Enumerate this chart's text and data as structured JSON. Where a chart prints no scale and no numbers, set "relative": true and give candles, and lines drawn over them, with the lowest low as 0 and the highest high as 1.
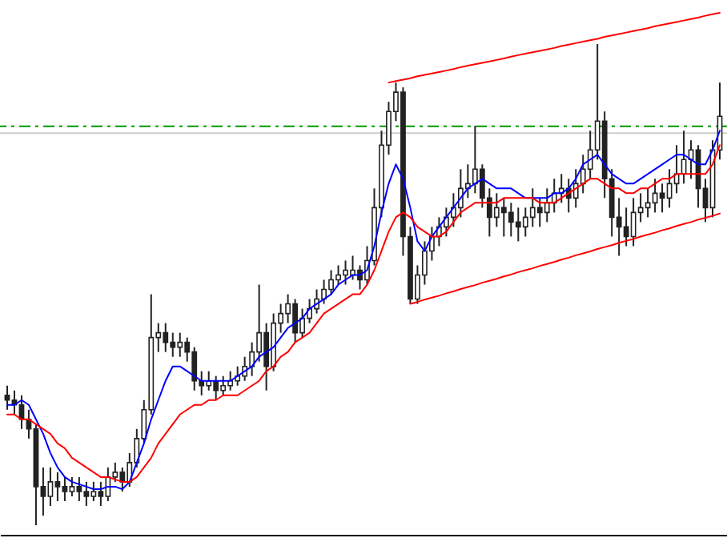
{
  "chart_data": {
    "type": "candlestick",
    "relative": true,
    "categories": [
      null,
      null,
      null,
      null,
      null,
      null,
      null,
      null,
      null,
      null,
      null,
      null,
      null,
      null,
      null,
      null,
      null,
      null,
      null,
      null,
      null,
      null,
      null,
      null,
      null,
      null,
      null,
      null,
      null,
      null,
      null,
      null,
      null,
      null,
      null,
      null,
      null,
      null,
      null,
      null,
      null,
      null,
      null,
      null,
      null,
      null,
      null,
      null,
      null,
      null,
      null,
      null,
      null,
      null,
      null,
      null,
      null,
      null,
      null,
      null,
      null,
      null,
      null,
      null,
      null,
      null,
      null,
      null,
      null,
      null,
      null,
      null,
      null,
      null,
      null,
      null,
      null,
      null,
      null,
      null,
      null,
      null,
      null,
      null,
      null,
      null,
      null,
      null,
      null,
      null,
      null,
      null,
      null,
      null,
      null,
      null,
      null,
      null,
      null,
      null
    ],
    "series": [
      {
        "color": "#222222",
        "ohlc": [
          [
            0.27,
            0.29,
            0.24,
            0.26
          ],
          [
            0.26,
            0.28,
            0.23,
            0.25
          ],
          [
            0.25,
            0.27,
            0.2,
            0.22
          ],
          [
            0.22,
            0.24,
            0.18,
            0.2
          ],
          [
            0.2,
            0.21,
            0,
            0.08
          ],
          [
            0.08,
            0.12,
            0.02,
            0.06
          ],
          [
            0.06,
            0.12,
            0.04,
            0.09
          ],
          [
            0.09,
            0.11,
            0.05,
            0.08
          ],
          [
            0.08,
            0.1,
            0.05,
            0.07
          ],
          [
            0.07,
            0.1,
            0.06,
            0.08
          ],
          [
            0.08,
            0.1,
            0.05,
            0.07
          ],
          [
            0.07,
            0.09,
            0.04,
            0.06
          ],
          [
            0.06,
            0.09,
            0.05,
            0.07
          ],
          [
            0.07,
            0.09,
            0.04,
            0.06
          ],
          [
            0.06,
            0.12,
            0.05,
            0.1
          ],
          [
            0.1,
            0.13,
            0.09,
            0.11
          ],
          [
            0.11,
            0.12,
            0.07,
            0.09
          ],
          [
            0.09,
            0.15,
            0.08,
            0.13
          ],
          [
            0.13,
            0.2,
            0.12,
            0.18
          ],
          [
            0.18,
            0.26,
            0.17,
            0.24
          ],
          [
            0.24,
            0.48,
            0.23,
            0.39
          ],
          [
            0.39,
            0.42,
            0.36,
            0.4
          ],
          [
            0.4,
            0.42,
            0.36,
            0.38
          ],
          [
            0.38,
            0.4,
            0.35,
            0.37
          ],
          [
            0.37,
            0.4,
            0.35,
            0.38
          ],
          [
            0.38,
            0.39,
            0.34,
            0.36
          ],
          [
            0.36,
            0.37,
            0.28,
            0.3
          ],
          [
            0.3,
            0.32,
            0.27,
            0.29
          ],
          [
            0.29,
            0.32,
            0.28,
            0.3
          ],
          [
            0.3,
            0.31,
            0.26,
            0.28
          ],
          [
            0.28,
            0.31,
            0.27,
            0.29
          ],
          [
            0.29,
            0.32,
            0.28,
            0.3
          ],
          [
            0.3,
            0.33,
            0.29,
            0.31
          ],
          [
            0.31,
            0.35,
            0.3,
            0.33
          ],
          [
            0.33,
            0.38,
            0.31,
            0.36
          ],
          [
            0.36,
            0.5,
            0.34,
            0.4
          ],
          [
            0.4,
            0.42,
            0.28,
            0.33
          ],
          [
            0.33,
            0.44,
            0.32,
            0.42
          ],
          [
            0.42,
            0.46,
            0.4,
            0.44
          ],
          [
            0.44,
            0.48,
            0.42,
            0.46
          ],
          [
            0.46,
            0.47,
            0.38,
            0.4
          ],
          [
            0.4,
            0.45,
            0.39,
            0.43
          ],
          [
            0.43,
            0.47,
            0.42,
            0.45
          ],
          [
            0.45,
            0.49,
            0.44,
            0.47
          ],
          [
            0.47,
            0.51,
            0.46,
            0.49
          ],
          [
            0.49,
            0.53,
            0.48,
            0.51
          ],
          [
            0.51,
            0.54,
            0.5,
            0.52
          ],
          [
            0.52,
            0.55,
            0.5,
            0.53
          ],
          [
            0.52,
            0.56,
            0.51,
            0.53
          ],
          [
            0.53,
            0.54,
            0.49,
            0.51
          ],
          [
            0.51,
            0.58,
            0.5,
            0.55
          ],
          [
            0.55,
            0.7,
            0.54,
            0.66
          ],
          [
            0.66,
            0.82,
            0.64,
            0.79
          ],
          [
            0.79,
            0.88,
            0.77,
            0.86
          ],
          [
            0.86,
            0.92,
            0.84,
            0.9
          ],
          [
            0.9,
            0.91,
            0.56,
            0.6
          ],
          [
            0.6,
            0.62,
            0.46,
            0.47
          ],
          [
            0.47,
            0.54,
            0.46,
            0.52
          ],
          [
            0.52,
            0.59,
            0.5,
            0.57
          ],
          [
            0.57,
            0.62,
            0.55,
            0.6
          ],
          [
            0.6,
            0.64,
            0.58,
            0.62
          ],
          [
            0.62,
            0.66,
            0.6,
            0.64
          ],
          [
            0.64,
            0.69,
            0.62,
            0.66
          ],
          [
            0.66,
            0.74,
            0.64,
            0.7
          ],
          [
            0.7,
            0.75,
            0.68,
            0.71
          ],
          [
            0.71,
            0.83,
            0.69,
            0.74
          ],
          [
            0.74,
            0.75,
            0.66,
            0.68
          ],
          [
            0.68,
            0.7,
            0.6,
            0.64
          ],
          [
            0.64,
            0.69,
            0.62,
            0.66
          ],
          [
            0.66,
            0.68,
            0.6,
            0.65
          ],
          [
            0.65,
            0.67,
            0.6,
            0.63
          ],
          [
            0.63,
            0.66,
            0.59,
            0.62
          ],
          [
            0.62,
            0.66,
            0.6,
            0.64
          ],
          [
            0.64,
            0.7,
            0.62,
            0.66
          ],
          [
            0.66,
            0.68,
            0.62,
            0.65
          ],
          [
            0.65,
            0.7,
            0.63,
            0.67
          ],
          [
            0.67,
            0.72,
            0.65,
            0.69
          ],
          [
            0.69,
            0.73,
            0.67,
            0.7
          ],
          [
            0.7,
            0.72,
            0.65,
            0.68
          ],
          [
            0.68,
            0.74,
            0.66,
            0.71
          ],
          [
            0.71,
            0.77,
            0.69,
            0.74
          ],
          [
            0.74,
            0.82,
            0.72,
            0.78
          ],
          [
            0.78,
            1,
            0.76,
            0.84
          ],
          [
            0.84,
            0.86,
            0.68,
            0.72
          ],
          [
            0.72,
            0.74,
            0.6,
            0.64
          ],
          [
            0.64,
            0.68,
            0.56,
            0.62
          ],
          [
            0.62,
            0.66,
            0.58,
            0.6
          ],
          [
            0.6,
            0.68,
            0.58,
            0.65
          ],
          [
            0.65,
            0.69,
            0.63,
            0.66
          ],
          [
            0.66,
            0.7,
            0.64,
            0.67
          ],
          [
            0.67,
            0.72,
            0.65,
            0.69
          ],
          [
            0.69,
            0.71,
            0.65,
            0.68
          ],
          [
            0.68,
            0.74,
            0.66,
            0.71
          ],
          [
            0.71,
            0.79,
            0.69,
            0.73
          ],
          [
            0.73,
            0.82,
            0.71,
            0.76
          ],
          [
            0.76,
            0.8,
            0.72,
            0.78
          ],
          [
            0.78,
            0.79,
            0.66,
            0.7
          ],
          [
            0.7,
            0.72,
            0.63,
            0.66
          ],
          [
            0.66,
            0.8,
            0.64,
            0.78
          ],
          [
            0.78,
            0.92,
            0.76,
            0.85
          ]
        ]
      },
      {
        "type": "line",
        "color": "#0000ff",
        "values": [
          0.25,
          0.25,
          0.26,
          0.25,
          0.22,
          0.19,
          0.15,
          0.12,
          0.1,
          0.09,
          0.085,
          0.08,
          0.075,
          0.075,
          0.08,
          0.08,
          0.075,
          0.09,
          0.13,
          0.17,
          0.22,
          0.26,
          0.3,
          0.33,
          0.33,
          0.32,
          0.31,
          0.3,
          0.3,
          0.3,
          0.3,
          0.3,
          0.31,
          0.32,
          0.33,
          0.35,
          0.36,
          0.37,
          0.39,
          0.41,
          0.42,
          0.43,
          0.45,
          0.46,
          0.47,
          0.48,
          0.5,
          0.51,
          0.52,
          0.52,
          0.53,
          0.58,
          0.65,
          0.71,
          0.75,
          0.72,
          0.66,
          0.59,
          0.57,
          0.6,
          0.62,
          0.64,
          0.66,
          0.68,
          0.7,
          0.71,
          0.72,
          0.71,
          0.7,
          0.7,
          0.7,
          0.69,
          0.68,
          0.68,
          0.68,
          0.68,
          0.69,
          0.69,
          0.7,
          0.72,
          0.75,
          0.76,
          0.77,
          0.75,
          0.73,
          0.72,
          0.71,
          0.71,
          0.72,
          0.73,
          0.74,
          0.75,
          0.76,
          0.77,
          0.77,
          0.76,
          0.75,
          0.75,
          0.78,
          0.82
        ]
      },
      {
        "type": "line",
        "color": "#ff0000",
        "values": [
          0.23,
          0.23,
          0.22,
          0.22,
          0.21,
          0.2,
          0.19,
          0.17,
          0.16,
          0.14,
          0.13,
          0.12,
          0.11,
          0.1,
          0.1,
          0.095,
          0.09,
          0.09,
          0.1,
          0.12,
          0.14,
          0.17,
          0.19,
          0.21,
          0.23,
          0.24,
          0.25,
          0.25,
          0.26,
          0.26,
          0.27,
          0.27,
          0.27,
          0.28,
          0.29,
          0.3,
          0.32,
          0.33,
          0.35,
          0.36,
          0.38,
          0.39,
          0.4,
          0.42,
          0.44,
          0.45,
          0.46,
          0.47,
          0.48,
          0.48,
          0.5,
          0.53,
          0.57,
          0.61,
          0.64,
          0.65,
          0.64,
          0.62,
          0.61,
          0.6,
          0.6,
          0.61,
          0.63,
          0.65,
          0.66,
          0.67,
          0.67,
          0.67,
          0.67,
          0.68,
          0.68,
          0.68,
          0.68,
          0.68,
          0.67,
          0.67,
          0.67,
          0.68,
          0.69,
          0.7,
          0.71,
          0.72,
          0.72,
          0.71,
          0.7,
          0.7,
          0.69,
          0.69,
          0.7,
          0.7,
          0.71,
          0.72,
          0.72,
          0.73,
          0.73,
          0.73,
          0.73,
          0.73,
          0.75,
          0.79
        ]
      },
      {
        "type": "line",
        "color": "#ff0000",
        "values": [
          null,
          null,
          null,
          null,
          null,
          null,
          null,
          null,
          null,
          null,
          null,
          null,
          null,
          null,
          null,
          null,
          null,
          null,
          null,
          null,
          null,
          null,
          null,
          null,
          null,
          null,
          null,
          null,
          null,
          null,
          null,
          null,
          null,
          null,
          null,
          null,
          null,
          null,
          null,
          null,
          null,
          null,
          null,
          null,
          null,
          null,
          null,
          null,
          null,
          null,
          null,
          null,
          null,
          0.92,
          0.923,
          0.926,
          0.929,
          0.933,
          0.936,
          0.939,
          0.942,
          0.945,
          0.948,
          0.952,
          0.955,
          0.958,
          0.961,
          0.964,
          0.967,
          0.97,
          0.974,
          0.977,
          0.98,
          0.983,
          0.986,
          0.989,
          0.992,
          0.996,
          0.999,
          1.002,
          1.005,
          1.008,
          1.011,
          1.015,
          1.018,
          1.021,
          1.024,
          1.027,
          1.03,
          1.033,
          1.037,
          1.04,
          1.043,
          1.046,
          1.049,
          1.052,
          1.055,
          1.059,
          1.062,
          1.065
        ]
      },
      {
        "type": "line",
        "color": "#ff0000",
        "values": [
          null,
          null,
          null,
          null,
          null,
          null,
          null,
          null,
          null,
          null,
          null,
          null,
          null,
          null,
          null,
          null,
          null,
          null,
          null,
          null,
          null,
          null,
          null,
          null,
          null,
          null,
          null,
          null,
          null,
          null,
          null,
          null,
          null,
          null,
          null,
          null,
          null,
          null,
          null,
          null,
          null,
          null,
          null,
          null,
          null,
          null,
          null,
          null,
          null,
          null,
          null,
          null,
          null,
          null,
          null,
          null,
          0.46,
          0.464,
          0.469,
          0.473,
          0.477,
          0.482,
          0.486,
          0.491,
          0.495,
          0.499,
          0.504,
          0.508,
          0.512,
          0.517,
          0.521,
          0.526,
          0.53,
          0.534,
          0.539,
          0.543,
          0.547,
          0.552,
          0.556,
          0.561,
          0.565,
          0.569,
          0.574,
          0.578,
          0.582,
          0.587,
          0.591,
          0.595,
          0.6,
          0.604,
          0.608,
          0.613,
          0.617,
          0.622,
          0.626,
          0.63,
          0.635,
          0.639,
          0.643,
          0.648
        ]
      }
    ],
    "ref_lines": [
      {
        "axis": "y",
        "value": 0.815,
        "color": "#cccccc",
        "line_style": "solid"
      },
      {
        "axis": "y",
        "value": 0.829,
        "color": "#009900",
        "line_style": "dashed"
      }
    ]
  }
}
